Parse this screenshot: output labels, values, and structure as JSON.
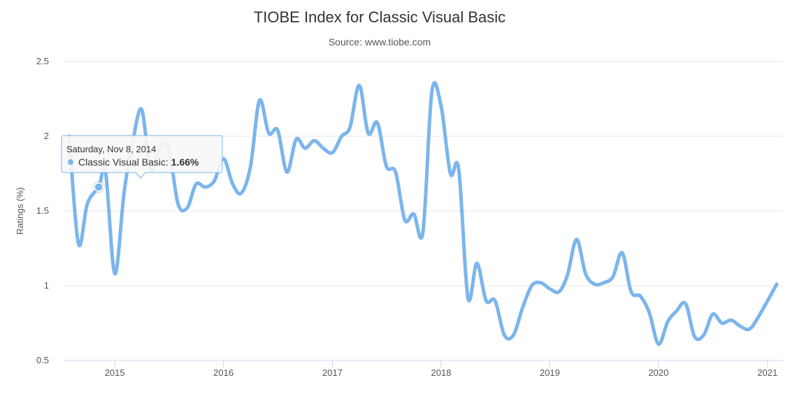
{
  "chart_data": {
    "type": "line",
    "title": "TIOBE Index for Classic Visual Basic",
    "subtitle": "Source: www.tiobe.com",
    "ylabel": "Ratings (%)",
    "xlabel": "",
    "ylim": [
      0.5,
      2.5
    ],
    "yticks": [
      "0.5",
      "1",
      "1.5",
      "2",
      "2.5"
    ],
    "xticks": [
      "2015",
      "2016",
      "2017",
      "2018",
      "2019",
      "2020",
      "2021"
    ],
    "grid": "horizontal",
    "series": [
      {
        "name": "Classic Visual Basic",
        "color": "#7cb5ec",
        "points": [
          [
            "2014-08-01",
            2.0
          ],
          [
            "2014-09-01",
            1.28
          ],
          [
            "2014-10-01",
            1.55
          ],
          [
            "2014-11-08",
            1.66
          ],
          [
            "2014-12-01",
            1.76
          ],
          [
            "2015-01-01",
            1.08
          ],
          [
            "2015-02-01",
            1.62
          ],
          [
            "2015-03-01",
            1.95
          ],
          [
            "2015-04-01",
            2.18
          ],
          [
            "2015-05-01",
            1.78
          ],
          [
            "2015-06-01",
            1.92
          ],
          [
            "2015-07-01",
            1.92
          ],
          [
            "2015-08-01",
            1.55
          ],
          [
            "2015-09-01",
            1.52
          ],
          [
            "2015-10-01",
            1.68
          ],
          [
            "2015-11-01",
            1.66
          ],
          [
            "2015-12-01",
            1.7
          ],
          [
            "2016-01-01",
            1.85
          ],
          [
            "2016-02-01",
            1.68
          ],
          [
            "2016-03-01",
            1.62
          ],
          [
            "2016-04-01",
            1.8
          ],
          [
            "2016-05-01",
            2.24
          ],
          [
            "2016-06-01",
            2.02
          ],
          [
            "2016-07-01",
            2.04
          ],
          [
            "2016-08-01",
            1.76
          ],
          [
            "2016-09-01",
            1.98
          ],
          [
            "2016-10-01",
            1.92
          ],
          [
            "2016-11-01",
            1.97
          ],
          [
            "2016-12-01",
            1.92
          ],
          [
            "2017-01-01",
            1.89
          ],
          [
            "2017-02-01",
            2.0
          ],
          [
            "2017-03-01",
            2.06
          ],
          [
            "2017-04-01",
            2.34
          ],
          [
            "2017-05-01",
            2.02
          ],
          [
            "2017-06-01",
            2.09
          ],
          [
            "2017-07-01",
            1.8
          ],
          [
            "2017-08-01",
            1.76
          ],
          [
            "2017-09-01",
            1.44
          ],
          [
            "2017-10-01",
            1.48
          ],
          [
            "2017-11-01",
            1.36
          ],
          [
            "2017-12-01",
            2.3
          ],
          [
            "2018-01-01",
            2.2
          ],
          [
            "2018-02-01",
            1.75
          ],
          [
            "2018-03-01",
            1.78
          ],
          [
            "2018-04-01",
            0.92
          ],
          [
            "2018-05-01",
            1.15
          ],
          [
            "2018-06-01",
            0.9
          ],
          [
            "2018-07-01",
            0.9
          ],
          [
            "2018-08-01",
            0.67
          ],
          [
            "2018-09-01",
            0.67
          ],
          [
            "2018-10-01",
            0.85
          ],
          [
            "2018-11-01",
            1.0
          ],
          [
            "2018-12-01",
            1.02
          ],
          [
            "2019-01-01",
            0.98
          ],
          [
            "2019-02-01",
            0.96
          ],
          [
            "2019-03-01",
            1.07
          ],
          [
            "2019-04-01",
            1.31
          ],
          [
            "2019-05-01",
            1.08
          ],
          [
            "2019-06-01",
            1.01
          ],
          [
            "2019-07-01",
            1.02
          ],
          [
            "2019-08-01",
            1.06
          ],
          [
            "2019-09-01",
            1.22
          ],
          [
            "2019-10-01",
            0.96
          ],
          [
            "2019-11-01",
            0.93
          ],
          [
            "2019-12-01",
            0.82
          ],
          [
            "2020-01-01",
            0.61
          ],
          [
            "2020-02-01",
            0.76
          ],
          [
            "2020-03-01",
            0.83
          ],
          [
            "2020-04-01",
            0.88
          ],
          [
            "2020-05-01",
            0.66
          ],
          [
            "2020-06-01",
            0.67
          ],
          [
            "2020-07-01",
            0.81
          ],
          [
            "2020-08-01",
            0.75
          ],
          [
            "2020-09-01",
            0.77
          ],
          [
            "2020-10-01",
            0.73
          ],
          [
            "2020-11-01",
            0.71
          ],
          [
            "2020-12-01",
            0.79
          ],
          [
            "2021-02-01",
            1.01
          ]
        ]
      }
    ],
    "tooltip": {
      "date": "Saturday, Nov 8, 2014",
      "series_label": "Classic Visual Basic: ",
      "value_label": "1.66%",
      "x": "2014-11-08",
      "y": 1.66
    }
  }
}
